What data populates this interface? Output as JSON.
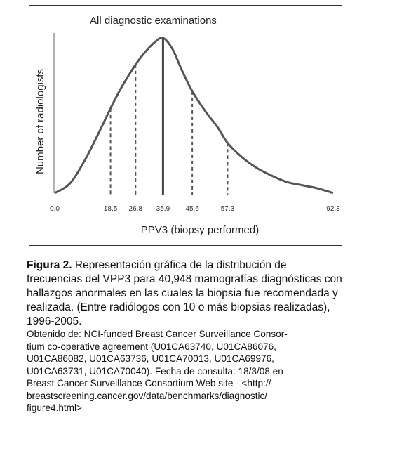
{
  "chart_data": {
    "type": "line",
    "annotation": "All diagnostic examinations",
    "xlabel": "PPV3 (biopsy performed)",
    "ylabel": "Number of radiologists",
    "x_ticks": [
      "0,0",
      "18,5",
      "26,8",
      "35,9",
      "45,6",
      "57,3",
      "92,3"
    ],
    "x_tick_values": [
      0.0,
      18.5,
      26.8,
      35.9,
      45.6,
      57.3,
      92.3
    ],
    "markers": [
      {
        "x": 18.5,
        "style": "dashed",
        "height": 0.55
      },
      {
        "x": 26.8,
        "style": "dashed",
        "height": 0.83
      },
      {
        "x": 35.9,
        "style": "solid",
        "height": 1.0
      },
      {
        "x": 45.6,
        "style": "dashed",
        "height": 0.66
      },
      {
        "x": 57.3,
        "style": "dashed",
        "height": 0.33
      }
    ],
    "series": [
      {
        "x": [
          0.0,
          5,
          10,
          15,
          18.5,
          22,
          26.8,
          30,
          33,
          35.9,
          39,
          42,
          45.6,
          50,
          54,
          57.3,
          62,
          67,
          72,
          77,
          82,
          87,
          92.3
        ],
        "y": [
          0.01,
          0.07,
          0.22,
          0.41,
          0.55,
          0.68,
          0.83,
          0.91,
          0.97,
          1.0,
          0.93,
          0.8,
          0.66,
          0.53,
          0.43,
          0.33,
          0.24,
          0.17,
          0.12,
          0.08,
          0.06,
          0.04,
          0.01
        ]
      }
    ],
    "grid": false,
    "legend": "none"
  },
  "caption": {
    "label": "Figura 2.",
    "text": " Representación gráfica de la distribución de frecuencias del VPP3 para 40,948 mamografías diagnósticas con hallazgos anormales en las cuales la biopsia fue recomendada y realizada. (Entre radiólogos con 10 o más biopsias realizadas), 1996-2005."
  },
  "source": "Obtenido de: NCI-funded Breast Cancer Surveillance Consor-\ntium co-operative agreement (U01CA63740, U01CA86076,\nU01CA86082, U01CA63736, U01CA70013, U01CA69976,\nU01CA63731, U01CA70040). Fecha de consulta: 18/3/08 en\nBreast Cancer Surveillance Consortium Web site - <http://\nbreastscreening.cancer.gov/data/benchmarks/diagnostic/\nfigure4.html>"
}
